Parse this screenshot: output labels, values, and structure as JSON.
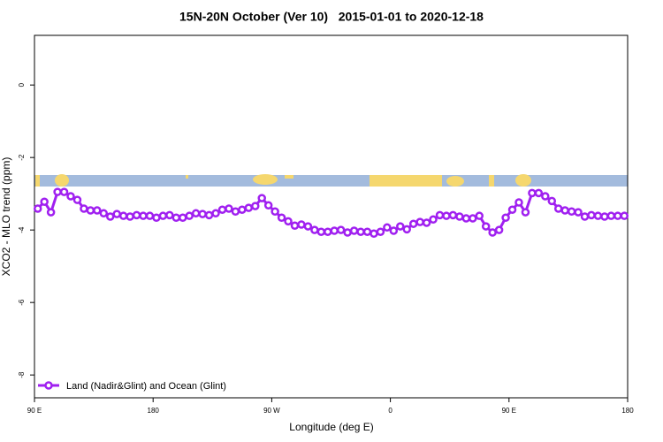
{
  "chart_data": {
    "type": "line",
    "title": "15N-20N October (Ver 10)   2015-01-01 to 2020-12-18",
    "x_label": "Longitude (deg E)",
    "y_label": "XCO2 - MLO trend (ppm)",
    "xlim": [
      90,
      540
    ],
    "ylim": [
      -8.63,
      1.37
    ],
    "xticks": [
      {
        "value": 90,
        "label": "90 E"
      },
      {
        "value": 180,
        "label": "180"
      },
      {
        "value": 270,
        "label": "90 W"
      },
      {
        "value": 360,
        "label": "0"
      },
      {
        "value": 450,
        "label": "90 E"
      },
      {
        "value": 540,
        "label": "180"
      }
    ],
    "yticks": [
      0,
      -2,
      -4,
      -6,
      -8
    ],
    "legend": "bottom-left",
    "x": [
      92.5,
      97.5,
      102.5,
      107.5,
      112.5,
      117.5,
      122.5,
      127.5,
      132.5,
      137.5,
      142.5,
      147.5,
      152.5,
      157.5,
      162.5,
      167.5,
      172.5,
      177.5,
      182.5,
      187.5,
      192.5,
      197.5,
      202.5,
      207.5,
      212.5,
      217.5,
      222.5,
      227.5,
      232.5,
      237.5,
      242.5,
      247.5,
      252.5,
      257.5,
      262.5,
      267.5,
      272.5,
      277.5,
      282.5,
      287.5,
      292.5,
      297.5,
      302.5,
      307.5,
      312.5,
      317.5,
      322.5,
      327.5,
      332.5,
      337.5,
      342.5,
      347.5,
      352.5,
      357.5,
      362.5,
      367.5,
      372.5,
      377.5,
      382.5,
      387.5,
      392.5,
      397.5,
      402.5,
      407.5,
      412.5,
      417.5,
      422.5,
      427.5,
      432.5,
      437.5,
      442.5,
      447.5,
      452.5,
      457.5,
      462.5,
      467.5,
      472.5,
      477.5,
      482.5,
      487.5,
      492.5,
      497.5,
      502.5,
      507.5,
      512.5,
      517.5,
      522.5,
      527.5,
      532.5,
      537.5
    ],
    "series": [
      {
        "name": "Land (Nadir&Glint) and Ocean (Glint)",
        "color": "#a020f0",
        "values": [
          -3.41,
          -3.22,
          -3.51,
          -2.95,
          -2.95,
          -3.07,
          -3.17,
          -3.41,
          -3.46,
          -3.46,
          -3.54,
          -3.63,
          -3.56,
          -3.61,
          -3.63,
          -3.59,
          -3.61,
          -3.61,
          -3.66,
          -3.61,
          -3.59,
          -3.66,
          -3.66,
          -3.61,
          -3.54,
          -3.56,
          -3.59,
          -3.54,
          -3.44,
          -3.41,
          -3.49,
          -3.44,
          -3.39,
          -3.34,
          -3.12,
          -3.32,
          -3.49,
          -3.66,
          -3.76,
          -3.88,
          -3.85,
          -3.9,
          -4.0,
          -4.05,
          -4.05,
          -4.02,
          -4.0,
          -4.07,
          -4.02,
          -4.05,
          -4.05,
          -4.1,
          -4.05,
          -3.93,
          -4.02,
          -3.9,
          -3.98,
          -3.83,
          -3.78,
          -3.8,
          -3.71,
          -3.59,
          -3.61,
          -3.59,
          -3.63,
          -3.68,
          -3.68,
          -3.61,
          -3.9,
          -4.07,
          -4.0,
          -3.66,
          -3.44,
          -3.24,
          -3.51,
          -2.98,
          -2.98,
          -3.07,
          -3.2,
          -3.41,
          -3.46,
          -3.49,
          -3.51,
          -3.63,
          -3.59,
          -3.61,
          -3.63,
          -3.61,
          -3.61,
          -3.61
        ]
      }
    ]
  }
}
